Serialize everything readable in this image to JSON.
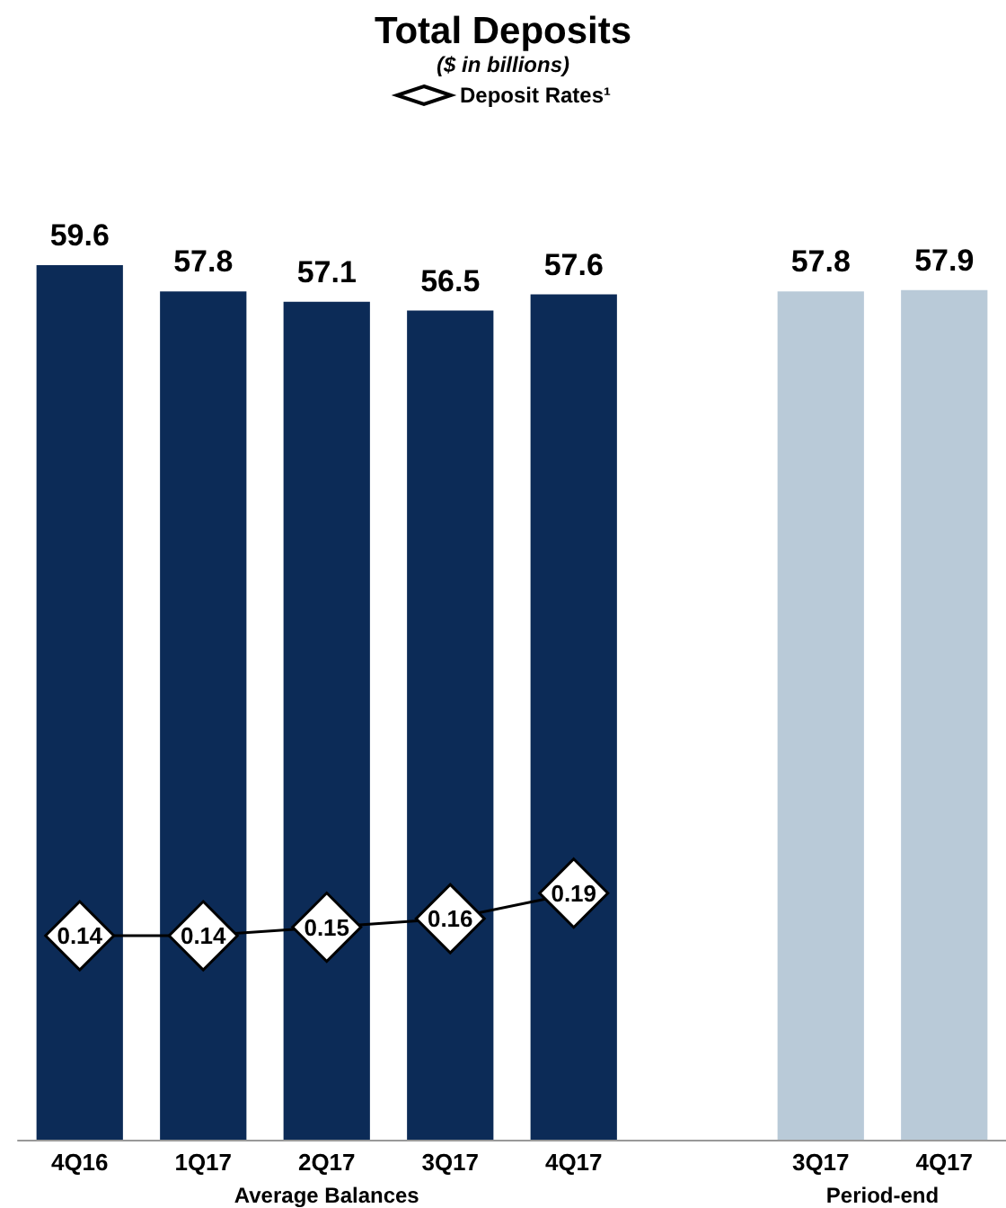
{
  "chart_data": {
    "type": "bar",
    "title": "Total Deposits",
    "subtitle": "($ in billions)",
    "categories": [
      "4Q16",
      "1Q17",
      "2Q17",
      "3Q17",
      "4Q17",
      null,
      "3Q17",
      "4Q17"
    ],
    "series": [
      {
        "colors": [
          "#0c2b57",
          "#0c2b57",
          "#0c2b57",
          "#0c2b57",
          "#0c2b57",
          null,
          "#b9cad8",
          "#b9cad8"
        ],
        "values": [
          59.6,
          57.8,
          57.1,
          56.5,
          57.6,
          null,
          57.8,
          57.9
        ]
      },
      {
        "type": "line",
        "name": "Deposit Rates¹",
        "axis": "y2",
        "color": "#000000",
        "values": [
          0.14,
          0.14,
          0.15,
          0.16,
          0.19,
          null,
          null,
          null
        ]
      }
    ],
    "tick_labels": "x",
    "annotations": [
      "Average Balances",
      "Period-end"
    ],
    "data_labels": true,
    "legend": "top",
    "marker": "diamond",
    "line_style": "solid",
    "grid": false
  }
}
